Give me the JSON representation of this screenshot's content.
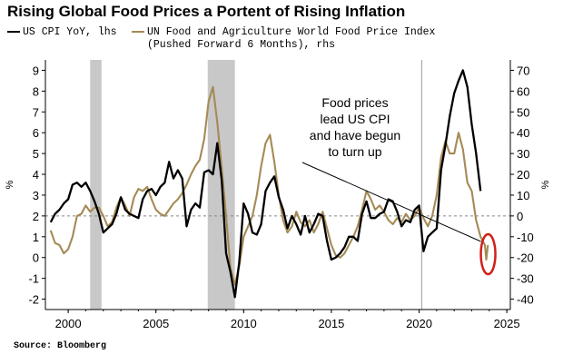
{
  "chart_data": {
    "type": "line",
    "title": "Rising Global Food Prices a Portent of Rising Inflation",
    "source": "Source: Bloomberg",
    "legend_placement": "top-left",
    "series": [
      {
        "name": "US CPI YoY, lhs",
        "axis": "left",
        "color": "#000000",
        "points": [
          [
            1999.0,
            1.7
          ],
          [
            1999.25,
            2.1
          ],
          [
            1999.5,
            2.3
          ],
          [
            1999.75,
            2.6
          ],
          [
            2000.0,
            2.8
          ],
          [
            2000.25,
            3.5
          ],
          [
            2000.5,
            3.6
          ],
          [
            2000.75,
            3.4
          ],
          [
            2001.0,
            3.6
          ],
          [
            2001.25,
            3.2
          ],
          [
            2001.5,
            2.7
          ],
          [
            2001.75,
            2.1
          ],
          [
            2002.0,
            1.2
          ],
          [
            2002.25,
            1.4
          ],
          [
            2002.5,
            1.6
          ],
          [
            2002.75,
            2.1
          ],
          [
            2003.0,
            2.9
          ],
          [
            2003.25,
            2.3
          ],
          [
            2003.5,
            2.1
          ],
          [
            2003.75,
            2.0
          ],
          [
            2004.0,
            1.9
          ],
          [
            2004.25,
            2.8
          ],
          [
            2004.5,
            3.2
          ],
          [
            2004.75,
            3.3
          ],
          [
            2005.0,
            3.0
          ],
          [
            2005.25,
            3.4
          ],
          [
            2005.5,
            3.6
          ],
          [
            2005.75,
            4.6
          ],
          [
            2006.0,
            3.8
          ],
          [
            2006.25,
            4.2
          ],
          [
            2006.5,
            3.8
          ],
          [
            2006.75,
            1.5
          ],
          [
            2007.0,
            2.3
          ],
          [
            2007.25,
            2.6
          ],
          [
            2007.5,
            2.4
          ],
          [
            2007.75,
            4.1
          ],
          [
            2008.0,
            4.2
          ],
          [
            2008.25,
            4.0
          ],
          [
            2008.5,
            5.5
          ],
          [
            2008.75,
            3.7
          ],
          [
            2009.0,
            0.2
          ],
          [
            2009.25,
            -0.7
          ],
          [
            2009.5,
            -1.9
          ],
          [
            2009.75,
            -0.2
          ],
          [
            2010.0,
            2.6
          ],
          [
            2010.25,
            2.1
          ],
          [
            2010.5,
            1.2
          ],
          [
            2010.75,
            1.1
          ],
          [
            2011.0,
            1.6
          ],
          [
            2011.25,
            3.2
          ],
          [
            2011.5,
            3.6
          ],
          [
            2011.75,
            3.9
          ],
          [
            2012.0,
            2.9
          ],
          [
            2012.25,
            2.3
          ],
          [
            2012.5,
            1.4
          ],
          [
            2012.75,
            2.0
          ],
          [
            2013.0,
            1.6
          ],
          [
            2013.25,
            1.1
          ],
          [
            2013.5,
            2.0
          ],
          [
            2013.75,
            1.2
          ],
          [
            2014.0,
            1.6
          ],
          [
            2014.25,
            2.1
          ],
          [
            2014.5,
            2.0
          ],
          [
            2014.75,
            0.8
          ],
          [
            2015.0,
            -0.1
          ],
          [
            2015.25,
            0.0
          ],
          [
            2015.5,
            0.2
          ],
          [
            2015.75,
            0.5
          ],
          [
            2016.0,
            1.0
          ],
          [
            2016.25,
            1.0
          ],
          [
            2016.5,
            0.8
          ],
          [
            2016.75,
            2.1
          ],
          [
            2017.0,
            2.7
          ],
          [
            2017.25,
            1.9
          ],
          [
            2017.5,
            1.9
          ],
          [
            2017.75,
            2.1
          ],
          [
            2018.0,
            2.2
          ],
          [
            2018.25,
            2.8
          ],
          [
            2018.5,
            2.7
          ],
          [
            2018.75,
            2.2
          ],
          [
            2019.0,
            1.5
          ],
          [
            2019.25,
            1.8
          ],
          [
            2019.5,
            1.7
          ],
          [
            2019.75,
            2.3
          ],
          [
            2020.0,
            2.5
          ],
          [
            2020.25,
            0.3
          ],
          [
            2020.5,
            1.0
          ],
          [
            2020.75,
            1.2
          ],
          [
            2021.0,
            1.4
          ],
          [
            2021.25,
            4.2
          ],
          [
            2021.5,
            5.4
          ],
          [
            2021.75,
            6.8
          ],
          [
            2022.0,
            7.9
          ],
          [
            2022.25,
            8.5
          ],
          [
            2022.5,
            9.0
          ],
          [
            2022.75,
            8.2
          ],
          [
            2023.0,
            6.4
          ],
          [
            2023.25,
            5.0
          ],
          [
            2023.5,
            3.2
          ]
        ]
      },
      {
        "name": "UN Food and Agriculture World Food Price Index (Pushed Forward 6 Months), rhs",
        "axis": "right",
        "color": "#a58a55",
        "points": [
          [
            1999.0,
            -7
          ],
          [
            1999.25,
            -13
          ],
          [
            1999.5,
            -14
          ],
          [
            1999.75,
            -18
          ],
          [
            2000.0,
            -16
          ],
          [
            2000.25,
            -10
          ],
          [
            2000.5,
            0
          ],
          [
            2000.75,
            1
          ],
          [
            2001.0,
            5
          ],
          [
            2001.25,
            2
          ],
          [
            2001.5,
            4
          ],
          [
            2001.75,
            4
          ],
          [
            2002.0,
            0
          ],
          [
            2002.25,
            -5
          ],
          [
            2002.5,
            -3
          ],
          [
            2002.75,
            4
          ],
          [
            2003.0,
            9
          ],
          [
            2003.25,
            5
          ],
          [
            2003.5,
            0
          ],
          [
            2003.75,
            9
          ],
          [
            2004.0,
            13
          ],
          [
            2004.25,
            12
          ],
          [
            2004.5,
            14
          ],
          [
            2004.75,
            8
          ],
          [
            2005.0,
            3
          ],
          [
            2005.25,
            1
          ],
          [
            2005.5,
            0
          ],
          [
            2005.75,
            3
          ],
          [
            2006.0,
            6
          ],
          [
            2006.25,
            8
          ],
          [
            2006.5,
            11
          ],
          [
            2006.75,
            15
          ],
          [
            2007.0,
            20
          ],
          [
            2007.25,
            24
          ],
          [
            2007.5,
            27
          ],
          [
            2007.75,
            37
          ],
          [
            2008.0,
            55
          ],
          [
            2008.25,
            62
          ],
          [
            2008.5,
            45
          ],
          [
            2008.75,
            23
          ],
          [
            2009.0,
            0
          ],
          [
            2009.25,
            -25
          ],
          [
            2009.5,
            -33
          ],
          [
            2009.75,
            -24
          ],
          [
            2010.0,
            -10
          ],
          [
            2010.25,
            -5
          ],
          [
            2010.5,
            0
          ],
          [
            2010.75,
            10
          ],
          [
            2011.0,
            24
          ],
          [
            2011.25,
            35
          ],
          [
            2011.5,
            39
          ],
          [
            2011.75,
            26
          ],
          [
            2012.0,
            10
          ],
          [
            2012.25,
            -2
          ],
          [
            2012.5,
            -8
          ],
          [
            2012.75,
            -5
          ],
          [
            2013.0,
            2
          ],
          [
            2013.25,
            -3
          ],
          [
            2013.5,
            -5
          ],
          [
            2013.75,
            -2
          ],
          [
            2014.0,
            -8
          ],
          [
            2014.25,
            -4
          ],
          [
            2014.5,
            2
          ],
          [
            2014.75,
            -6
          ],
          [
            2015.0,
            -14
          ],
          [
            2015.25,
            -19
          ],
          [
            2015.5,
            -20
          ],
          [
            2015.75,
            -18
          ],
          [
            2016.0,
            -14
          ],
          [
            2016.25,
            -10
          ],
          [
            2016.5,
            -5
          ],
          [
            2016.75,
            3
          ],
          [
            2017.0,
            12
          ],
          [
            2017.25,
            8
          ],
          [
            2017.5,
            3
          ],
          [
            2017.75,
            5
          ],
          [
            2018.0,
            2
          ],
          [
            2018.25,
            -2
          ],
          [
            2018.5,
            -4
          ],
          [
            2018.75,
            -1
          ],
          [
            2019.0,
            -3
          ],
          [
            2019.25,
            1
          ],
          [
            2019.5,
            -2
          ],
          [
            2019.75,
            0
          ],
          [
            2020.0,
            4
          ],
          [
            2020.25,
            -1
          ],
          [
            2020.5,
            -5
          ],
          [
            2020.75,
            0
          ],
          [
            2021.0,
            10
          ],
          [
            2021.25,
            28
          ],
          [
            2021.5,
            36
          ],
          [
            2021.75,
            30
          ],
          [
            2022.0,
            30
          ],
          [
            2022.25,
            40
          ],
          [
            2022.5,
            32
          ],
          [
            2022.75,
            16
          ],
          [
            2023.0,
            12
          ],
          [
            2023.25,
            -2
          ],
          [
            2023.5,
            -10
          ],
          [
            2023.75,
            -14
          ],
          [
            2023.83,
            -21
          ],
          [
            2023.92,
            -14
          ]
        ]
      }
    ],
    "left_axis": {
      "ylim": [
        -2.5,
        9.5
      ],
      "ticks": [
        "9",
        "8",
        "7",
        "6",
        "5",
        "4",
        "3",
        "2",
        "1",
        "0",
        "-1",
        "-2"
      ],
      "unit": "%"
    },
    "right_axis": {
      "ylim": [
        -45,
        75
      ],
      "ticks": [
        "70",
        "60",
        "50",
        "40",
        "30",
        "20",
        "10",
        "0",
        "-10",
        "-20",
        "-30",
        "-40"
      ],
      "unit": "%"
    },
    "x_axis": {
      "xlim": [
        1998.7,
        2025.2
      ],
      "ticks": [
        "2000",
        "2005",
        "2010",
        "2015",
        "2020",
        "2025"
      ]
    },
    "shaded_recessions": [
      [
        2001.25,
        2001.9
      ],
      [
        2007.95,
        2009.5
      ]
    ],
    "reference_lines": {
      "vertical_x": 2020.15,
      "dashed_left_y": 2
    },
    "annotation": {
      "lines": [
        "Food prices",
        "lead US CPI",
        "and have begun",
        "to turn up"
      ]
    }
  }
}
